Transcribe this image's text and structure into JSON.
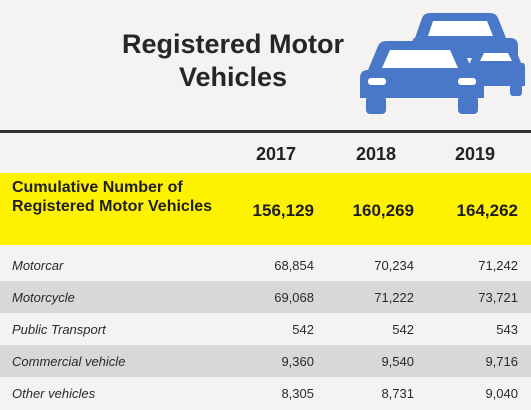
{
  "title": "Registered Motor Vehicles",
  "years": [
    "2017",
    "2018",
    "2019"
  ],
  "cumulative": {
    "label": "Cumulative Number of Registered Motor Vehicles",
    "values": [
      "156,129",
      "160,269",
      "164,262"
    ]
  },
  "rows": [
    {
      "label": "Motorcar",
      "values": [
        "68,854",
        "70,234",
        "71,242"
      ]
    },
    {
      "label": "Motorcycle",
      "values": [
        "69,068",
        "71,222",
        "73,721"
      ]
    },
    {
      "label": "Public Transport",
      "values": [
        "542",
        "542",
        "543"
      ]
    },
    {
      "label": "Commercial vehicle",
      "values": [
        "9,360",
        "9,540",
        "9,716"
      ]
    },
    {
      "label": "Other vehicles",
      "values": [
        "8,305",
        "8,731",
        "9,040"
      ]
    }
  ],
  "icon": "cars-icon",
  "colors": {
    "highlight": "#fff200",
    "car_blue": "#4a78c8"
  }
}
